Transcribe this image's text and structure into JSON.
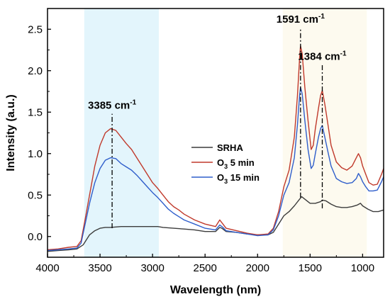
{
  "chart_data": {
    "type": "line",
    "xlabel": "Wavelength (nm)",
    "ylabel": "Intensity (a.u.)",
    "xlim": [
      4000,
      800
    ],
    "ylim": [
      -0.25,
      2.75
    ],
    "x_ticks": [
      4000,
      3500,
      3000,
      2500,
      2000,
      1500,
      1000
    ],
    "y_ticks": [
      0.0,
      0.5,
      1.0,
      1.5,
      2.0,
      2.5
    ],
    "shaded_regions": [
      {
        "x_from": 3650,
        "x_to": 2940,
        "color": "#e3f5fc"
      },
      {
        "x_from": 1760,
        "x_to": 960,
        "color": "#fdfaef"
      }
    ],
    "series": [
      {
        "name": "SRHA",
        "color": "#3c3c3c",
        "points": [
          [
            4000,
            -0.18
          ],
          [
            3900,
            -0.17
          ],
          [
            3800,
            -0.16
          ],
          [
            3720,
            -0.15
          ],
          [
            3660,
            -0.1
          ],
          [
            3600,
            0.02
          ],
          [
            3550,
            0.07
          ],
          [
            3500,
            0.1
          ],
          [
            3450,
            0.11
          ],
          [
            3400,
            0.11
          ],
          [
            3350,
            0.115
          ],
          [
            3300,
            0.12
          ],
          [
            3250,
            0.12
          ],
          [
            3200,
            0.12
          ],
          [
            3100,
            0.12
          ],
          [
            3000,
            0.12
          ],
          [
            2950,
            0.12
          ],
          [
            2900,
            0.11
          ],
          [
            2800,
            0.1
          ],
          [
            2700,
            0.09
          ],
          [
            2600,
            0.08
          ],
          [
            2500,
            0.06
          ],
          [
            2400,
            0.06
          ],
          [
            2360,
            0.11
          ],
          [
            2340,
            0.1
          ],
          [
            2320,
            0.08
          ],
          [
            2300,
            0.06
          ],
          [
            2200,
            0.05
          ],
          [
            2100,
            0.03
          ],
          [
            2000,
            0.02
          ],
          [
            1900,
            0.02
          ],
          [
            1850,
            0.05
          ],
          [
            1800,
            0.15
          ],
          [
            1750,
            0.25
          ],
          [
            1700,
            0.3
          ],
          [
            1650,
            0.37
          ],
          [
            1600,
            0.45
          ],
          [
            1580,
            0.48
          ],
          [
            1550,
            0.45
          ],
          [
            1500,
            0.4
          ],
          [
            1450,
            0.4
          ],
          [
            1400,
            0.42
          ],
          [
            1384,
            0.44
          ],
          [
            1350,
            0.43
          ],
          [
            1300,
            0.39
          ],
          [
            1250,
            0.36
          ],
          [
            1200,
            0.35
          ],
          [
            1150,
            0.35
          ],
          [
            1100,
            0.36
          ],
          [
            1050,
            0.38
          ],
          [
            1020,
            0.4
          ],
          [
            1000,
            0.37
          ],
          [
            950,
            0.33
          ],
          [
            900,
            0.3
          ],
          [
            850,
            0.3
          ],
          [
            800,
            0.32
          ]
        ]
      },
      {
        "name": "O3 5 min",
        "color": "#c0392b",
        "points": [
          [
            4000,
            -0.16
          ],
          [
            3900,
            -0.15
          ],
          [
            3800,
            -0.13
          ],
          [
            3720,
            -0.12
          ],
          [
            3680,
            -0.05
          ],
          [
            3650,
            0.15
          ],
          [
            3600,
            0.5
          ],
          [
            3550,
            0.85
          ],
          [
            3500,
            1.1
          ],
          [
            3450,
            1.25
          ],
          [
            3400,
            1.3
          ],
          [
            3350,
            1.28
          ],
          [
            3300,
            1.2
          ],
          [
            3250,
            1.12
          ],
          [
            3200,
            1.05
          ],
          [
            3150,
            0.95
          ],
          [
            3100,
            0.85
          ],
          [
            3050,
            0.75
          ],
          [
            3000,
            0.65
          ],
          [
            2950,
            0.58
          ],
          [
            2900,
            0.5
          ],
          [
            2850,
            0.42
          ],
          [
            2800,
            0.36
          ],
          [
            2750,
            0.32
          ],
          [
            2700,
            0.27
          ],
          [
            2600,
            0.2
          ],
          [
            2500,
            0.15
          ],
          [
            2400,
            0.12
          ],
          [
            2360,
            0.2
          ],
          [
            2330,
            0.15
          ],
          [
            2300,
            0.1
          ],
          [
            2200,
            0.07
          ],
          [
            2100,
            0.04
          ],
          [
            2000,
            0.02
          ],
          [
            1900,
            0.03
          ],
          [
            1850,
            0.1
          ],
          [
            1800,
            0.3
          ],
          [
            1750,
            0.6
          ],
          [
            1700,
            0.8
          ],
          [
            1650,
            1.2
          ],
          [
            1620,
            1.7
          ],
          [
            1600,
            2.15
          ],
          [
            1591,
            2.3
          ],
          [
            1575,
            2.2
          ],
          [
            1550,
            1.8
          ],
          [
            1520,
            1.4
          ],
          [
            1490,
            1.05
          ],
          [
            1470,
            1.1
          ],
          [
            1450,
            1.3
          ],
          [
            1420,
            1.55
          ],
          [
            1400,
            1.7
          ],
          [
            1384,
            1.76
          ],
          [
            1360,
            1.6
          ],
          [
            1330,
            1.35
          ],
          [
            1300,
            1.1
          ],
          [
            1250,
            0.9
          ],
          [
            1200,
            0.83
          ],
          [
            1150,
            0.8
          ],
          [
            1100,
            0.85
          ],
          [
            1060,
            0.95
          ],
          [
            1040,
            1.0
          ],
          [
            1020,
            0.95
          ],
          [
            1000,
            0.85
          ],
          [
            970,
            0.75
          ],
          [
            940,
            0.65
          ],
          [
            900,
            0.62
          ],
          [
            860,
            0.63
          ],
          [
            820,
            0.75
          ],
          [
            800,
            0.82
          ]
        ]
      },
      {
        "name": "O3 15 min",
        "color": "#2f5ecb",
        "points": [
          [
            4000,
            -0.17
          ],
          [
            3900,
            -0.16
          ],
          [
            3800,
            -0.15
          ],
          [
            3720,
            -0.14
          ],
          [
            3680,
            -0.08
          ],
          [
            3650,
            0.1
          ],
          [
            3600,
            0.4
          ],
          [
            3550,
            0.65
          ],
          [
            3500,
            0.82
          ],
          [
            3450,
            0.92
          ],
          [
            3400,
            0.95
          ],
          [
            3350,
            0.94
          ],
          [
            3300,
            0.88
          ],
          [
            3250,
            0.84
          ],
          [
            3200,
            0.8
          ],
          [
            3150,
            0.74
          ],
          [
            3100,
            0.67
          ],
          [
            3050,
            0.6
          ],
          [
            3000,
            0.53
          ],
          [
            2950,
            0.47
          ],
          [
            2900,
            0.4
          ],
          [
            2850,
            0.33
          ],
          [
            2800,
            0.28
          ],
          [
            2750,
            0.24
          ],
          [
            2700,
            0.2
          ],
          [
            2600,
            0.15
          ],
          [
            2500,
            0.1
          ],
          [
            2400,
            0.08
          ],
          [
            2360,
            0.14
          ],
          [
            2330,
            0.11
          ],
          [
            2300,
            0.07
          ],
          [
            2200,
            0.05
          ],
          [
            2100,
            0.03
          ],
          [
            2000,
            0.01
          ],
          [
            1900,
            0.02
          ],
          [
            1850,
            0.08
          ],
          [
            1800,
            0.25
          ],
          [
            1750,
            0.5
          ],
          [
            1700,
            0.65
          ],
          [
            1650,
            0.95
          ],
          [
            1620,
            1.35
          ],
          [
            1600,
            1.7
          ],
          [
            1591,
            1.8
          ],
          [
            1575,
            1.72
          ],
          [
            1550,
            1.4
          ],
          [
            1520,
            1.05
          ],
          [
            1490,
            0.82
          ],
          [
            1470,
            0.86
          ],
          [
            1450,
            1.0
          ],
          [
            1420,
            1.2
          ],
          [
            1400,
            1.3
          ],
          [
            1384,
            1.34
          ],
          [
            1360,
            1.2
          ],
          [
            1330,
            1.02
          ],
          [
            1300,
            0.85
          ],
          [
            1250,
            0.7
          ],
          [
            1200,
            0.66
          ],
          [
            1150,
            0.64
          ],
          [
            1100,
            0.65
          ],
          [
            1060,
            0.7
          ],
          [
            1040,
            0.76
          ],
          [
            1020,
            0.72
          ],
          [
            1000,
            0.66
          ],
          [
            970,
            0.6
          ],
          [
            940,
            0.55
          ],
          [
            900,
            0.55
          ],
          [
            860,
            0.56
          ],
          [
            820,
            0.66
          ],
          [
            800,
            0.72
          ]
        ]
      }
    ],
    "annotations": [
      {
        "label": "3385 cm",
        "sup": "-1",
        "x": 3385,
        "y_from": 0.1,
        "y_to": 1.48
      },
      {
        "label": "1591 cm",
        "sup": "-1",
        "x": 1591,
        "y_from": 0.47,
        "y_to": 2.52
      },
      {
        "label": "1384 cm",
        "sup": "-1",
        "x": 1384,
        "y_from": 0.34,
        "y_to": 2.07
      }
    ],
    "legend": {
      "position": "center",
      "entries": [
        {
          "text": "SRHA",
          "sub": "",
          "rest": ""
        },
        {
          "text": "O",
          "sub": "3",
          "rest": " 5 min"
        },
        {
          "text": "O",
          "sub": "3",
          "rest": " 15 min"
        }
      ]
    }
  }
}
